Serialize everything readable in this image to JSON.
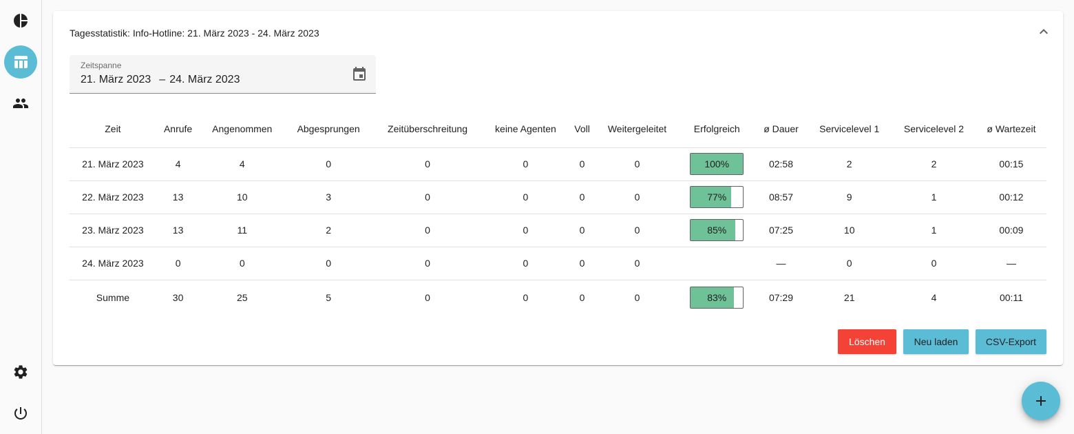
{
  "sidebar": {
    "items": [
      {
        "icon": "pie-chart-icon"
      },
      {
        "icon": "table-icon",
        "active": true
      },
      {
        "icon": "people-icon"
      },
      {
        "icon": "gear-icon"
      },
      {
        "icon": "power-icon"
      }
    ]
  },
  "card": {
    "title": "Tagesstatistik: Info-Hotline: 21. März 2023 - 24. März 2023"
  },
  "date_range": {
    "label": "Zeitspanne",
    "start": "21. März 2023",
    "separator": "–",
    "end": "24. März 2023"
  },
  "table": {
    "headers": [
      "Zeit",
      "Anrufe",
      "Angenommen",
      "Abgesprungen",
      "Zeitüberschreitung",
      "keine Agenten",
      "Voll",
      "Weitergeleitet",
      "Erfolgreich",
      "ø Dauer",
      "Servicelevel 1",
      "Servicelevel 2",
      "ø Wartezeit"
    ],
    "rows": [
      {
        "zeit": "21. März 2023",
        "anrufe": "4",
        "angenommen": "4",
        "abgesprungen": "0",
        "zeitueberschreitung": "0",
        "keine_agenten": "0",
        "voll": "0",
        "weitergeleitet": "0",
        "erfolgreich": "100%",
        "erfolgreich_value": 100,
        "dauer": "02:58",
        "sl1": "2",
        "sl2": "2",
        "wartezeit": "00:15"
      },
      {
        "zeit": "22. März 2023",
        "anrufe": "13",
        "angenommen": "10",
        "abgesprungen": "3",
        "zeitueberschreitung": "0",
        "keine_agenten": "0",
        "voll": "0",
        "weitergeleitet": "0",
        "erfolgreich": "77%",
        "erfolgreich_value": 77,
        "dauer": "08:57",
        "sl1": "9",
        "sl2": "1",
        "wartezeit": "00:12"
      },
      {
        "zeit": "23. März 2023",
        "anrufe": "13",
        "angenommen": "11",
        "abgesprungen": "2",
        "zeitueberschreitung": "0",
        "keine_agenten": "0",
        "voll": "0",
        "weitergeleitet": "0",
        "erfolgreich": "85%",
        "erfolgreich_value": 85,
        "dauer": "07:25",
        "sl1": "10",
        "sl2": "1",
        "wartezeit": "00:09"
      },
      {
        "zeit": "24. März 2023",
        "anrufe": "0",
        "angenommen": "0",
        "abgesprungen": "0",
        "zeitueberschreitung": "0",
        "keine_agenten": "0",
        "voll": "0",
        "weitergeleitet": "0",
        "erfolgreich": "",
        "erfolgreich_value": null,
        "dauer": "—",
        "sl1": "0",
        "sl2": "0",
        "wartezeit": "—"
      }
    ],
    "sum": {
      "zeit": "Summe",
      "anrufe": "30",
      "angenommen": "25",
      "abgesprungen": "5",
      "zeitueberschreitung": "0",
      "keine_agenten": "0",
      "voll": "0",
      "weitergeleitet": "0",
      "erfolgreich": "83%",
      "erfolgreich_value": 83,
      "dauer": "07:29",
      "sl1": "21",
      "sl2": "4",
      "wartezeit": "00:11"
    }
  },
  "actions": {
    "delete_label": "Löschen",
    "reload_label": "Neu laden",
    "csv_label": "CSV-Export"
  },
  "fab": {
    "icon": "plus-icon"
  },
  "colors": {
    "accent": "#5bbcd6",
    "danger": "#f44336",
    "success_bar": "#6fc197"
  }
}
